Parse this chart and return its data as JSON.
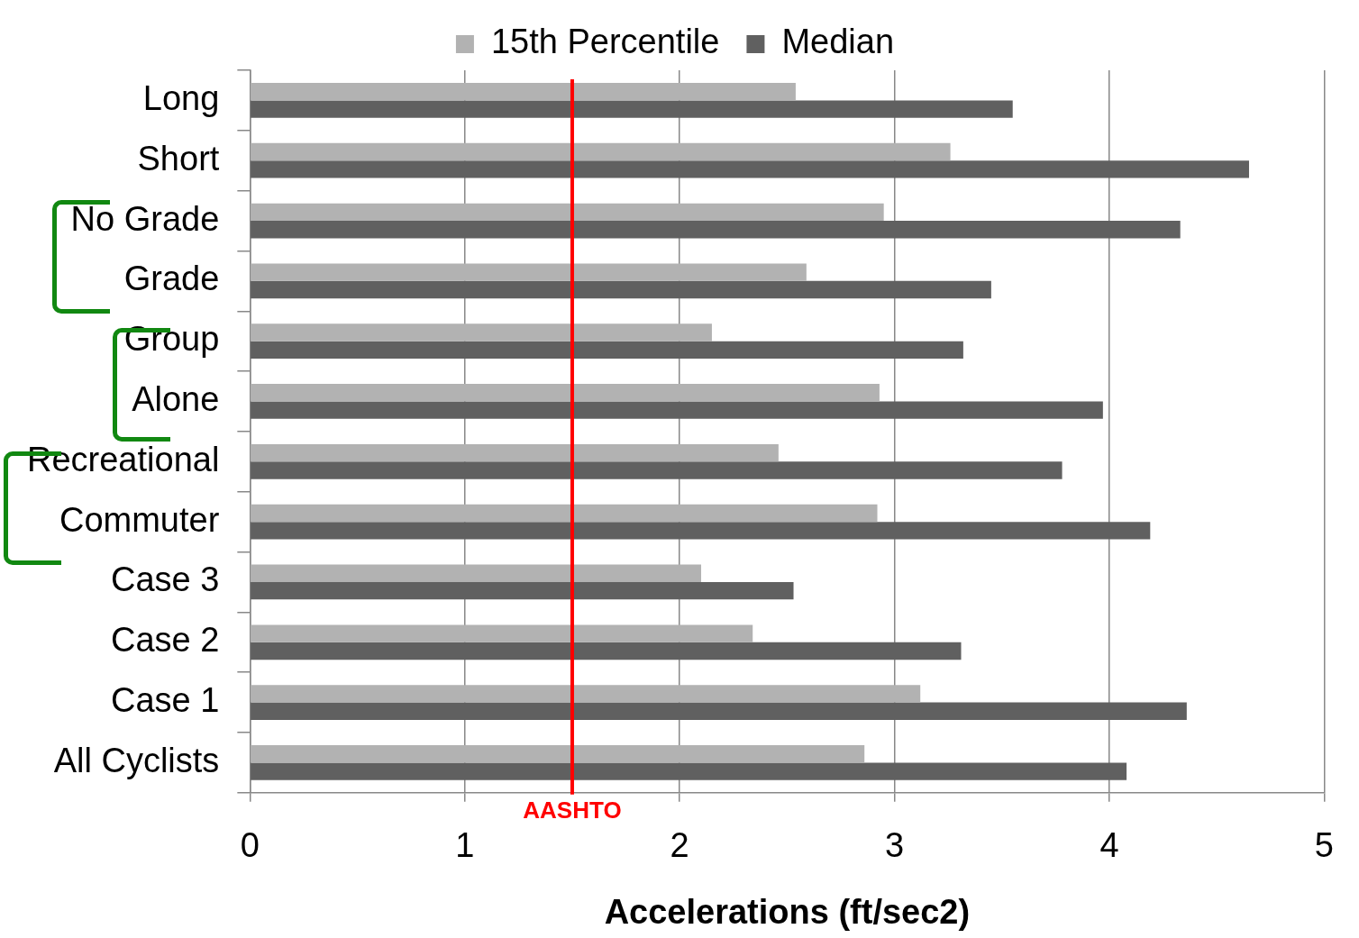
{
  "chart_data": {
    "type": "bar",
    "orientation": "horizontal",
    "xlabel": "Accelerations (ft/sec2)",
    "categories": [
      "Long",
      "Short",
      "No Grade",
      "Grade",
      "Group",
      "Alone",
      "Recreational",
      "Commuter",
      "Case 3",
      "Case 2",
      "Case 1",
      "All Cyclists"
    ],
    "series": [
      {
        "name": "15th Percentile",
        "color": "#b2b2b2",
        "values": [
          2.54,
          3.26,
          2.95,
          2.59,
          2.15,
          2.93,
          2.46,
          2.92,
          2.1,
          2.34,
          3.12,
          2.86
        ]
      },
      {
        "name": "Median",
        "color": "#606060",
        "values": [
          3.55,
          4.65,
          4.33,
          3.45,
          3.32,
          3.97,
          3.78,
          4.19,
          2.53,
          3.31,
          4.36,
          4.08
        ]
      }
    ],
    "xlim": [
      0,
      5
    ],
    "xticks": [
      0,
      1,
      2,
      3,
      4,
      5
    ],
    "ref_lines": [
      {
        "axis": "x",
        "value": 1.5,
        "label": "AASHTO",
        "color": "#ff0000"
      }
    ],
    "grid": "x",
    "legend": "top"
  }
}
